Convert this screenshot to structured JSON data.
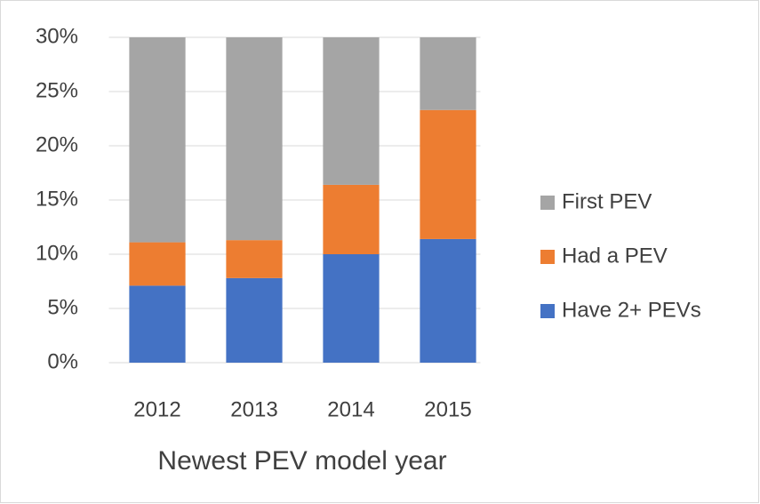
{
  "chart_data": {
    "type": "stacked_bar",
    "x_label": "Newest PEV model year",
    "categories": [
      "2012",
      "2013",
      "2014",
      "2015"
    ],
    "series": [
      {
        "name": "Have 2+ PEVs",
        "color": "#4472c4",
        "values": [
          7.1,
          7.8,
          10.0,
          11.4
        ]
      },
      {
        "name": "Had a PEV",
        "color": "#ed7d31",
        "values": [
          4.0,
          3.5,
          6.4,
          11.9
        ]
      },
      {
        "name": "First PEV",
        "color": "#a5a5a5",
        "values": [
          18.9,
          18.7,
          13.6,
          6.7
        ]
      }
    ],
    "ylim": [
      0,
      30
    ],
    "yticks": [
      {
        "value": 0,
        "label": "0%"
      },
      {
        "value": 5,
        "label": "5%"
      },
      {
        "value": 10,
        "label": "10%"
      },
      {
        "value": 15,
        "label": "15%"
      },
      {
        "value": 20,
        "label": "20%"
      },
      {
        "value": 25,
        "label": "25%"
      },
      {
        "value": 30,
        "label": "30%"
      }
    ],
    "grid": true,
    "legend": "right"
  }
}
